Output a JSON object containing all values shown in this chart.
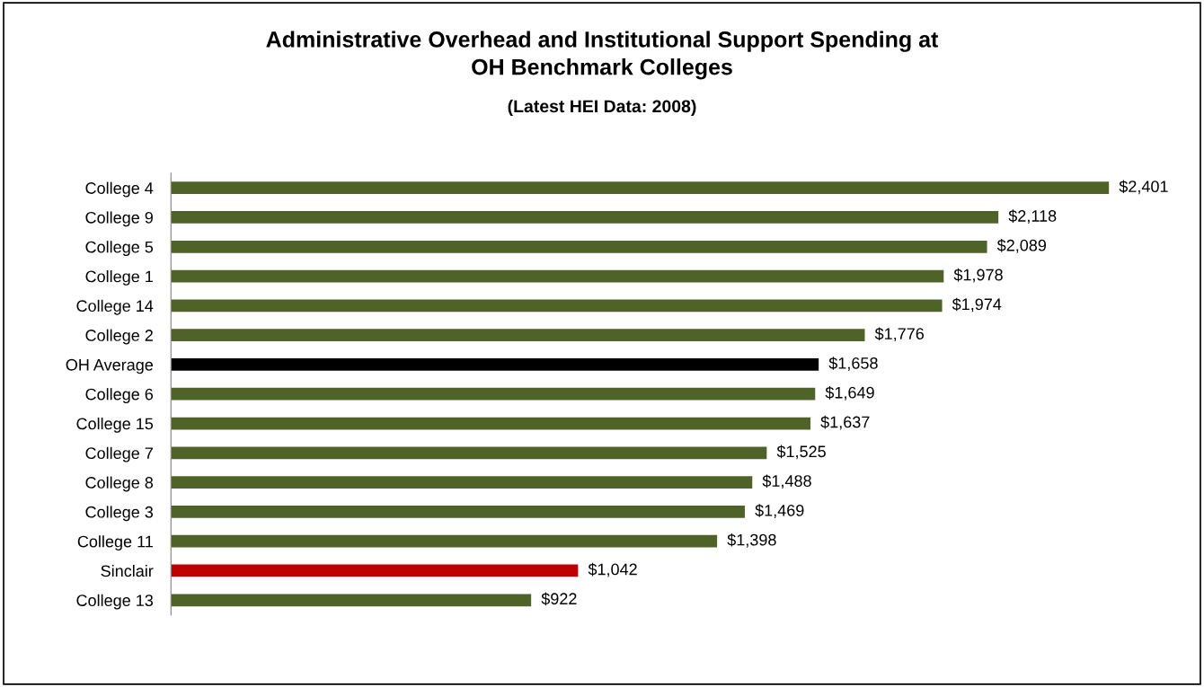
{
  "chart_data": {
    "type": "bar",
    "orientation": "horizontal",
    "title": "Administrative Overhead and Institutional Support Spending at\nOH Benchmark Colleges",
    "subtitle": "(Latest HEI Data: 2008)",
    "categories": [
      "College 4",
      "College 9",
      "College 5",
      "College 1",
      "College 14",
      "College 2",
      "OH Average",
      "College 6",
      "College 15",
      "College 7",
      "College 8",
      "College 3",
      "College 11",
      "Sinclair",
      "College 13"
    ],
    "values": [
      2401,
      2118,
      2089,
      1978,
      1974,
      1776,
      1658,
      1649,
      1637,
      1525,
      1488,
      1469,
      1398,
      1042,
      922
    ],
    "colors": [
      "#4f6228",
      "#4f6228",
      "#4f6228",
      "#4f6228",
      "#4f6228",
      "#4f6228",
      "#000000",
      "#4f6228",
      "#4f6228",
      "#4f6228",
      "#4f6228",
      "#4f6228",
      "#4f6228",
      "#c00000",
      "#4f6228"
    ],
    "value_labels": [
      "$2,401",
      "$2,118",
      "$2,089",
      "$1,978",
      "$1,974",
      "$1,776",
      "$1,658",
      "$1,649",
      "$1,637",
      "$1,525",
      "$1,488",
      "$1,469",
      "$1,398",
      "$1,042",
      "$922"
    ],
    "grid": false,
    "legend": false
  }
}
